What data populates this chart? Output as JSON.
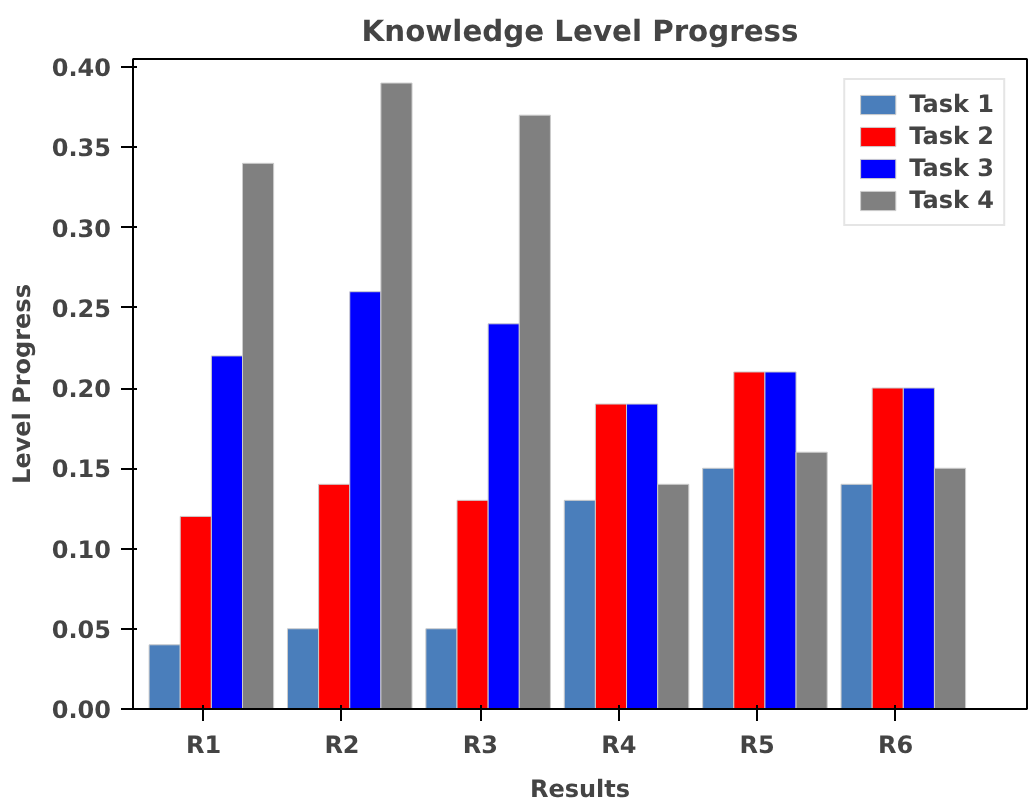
{
  "chart_data": {
    "type": "bar",
    "title": "Knowledge Level Progress",
    "xlabel": "Results",
    "ylabel": "Level Progress",
    "categories": [
      "R1",
      "R2",
      "R3",
      "R4",
      "R5",
      "R6"
    ],
    "series": [
      {
        "name": "Task 1",
        "color": "#4a7ebb",
        "values": [
          0.04,
          0.05,
          0.05,
          0.13,
          0.15,
          0.14
        ]
      },
      {
        "name": "Task 2",
        "color": "#ff0000",
        "values": [
          0.12,
          0.14,
          0.13,
          0.19,
          0.21,
          0.2
        ]
      },
      {
        "name": "Task 3",
        "color": "#0000ff",
        "values": [
          0.22,
          0.26,
          0.24,
          0.19,
          0.21,
          0.2
        ]
      },
      {
        "name": "Task 4",
        "color": "#808080",
        "values": [
          0.34,
          0.39,
          0.37,
          0.14,
          0.16,
          0.15
        ]
      }
    ],
    "ylim": [
      0,
      0.405
    ],
    "yticks": [
      {
        "value": 0,
        "label": "0.00"
      },
      {
        "value": 0.05,
        "label": "0.05"
      },
      {
        "value": 0.1,
        "label": "0.10"
      },
      {
        "value": 0.15,
        "label": "0.15"
      },
      {
        "value": 0.2,
        "label": "0.20"
      },
      {
        "value": 0.25,
        "label": "0.25"
      },
      {
        "value": 0.3,
        "label": "0.30"
      },
      {
        "value": 0.35,
        "label": "0.35"
      },
      {
        "value": 0.4,
        "label": "0.40"
      }
    ],
    "grid": false,
    "legend": "top right"
  }
}
